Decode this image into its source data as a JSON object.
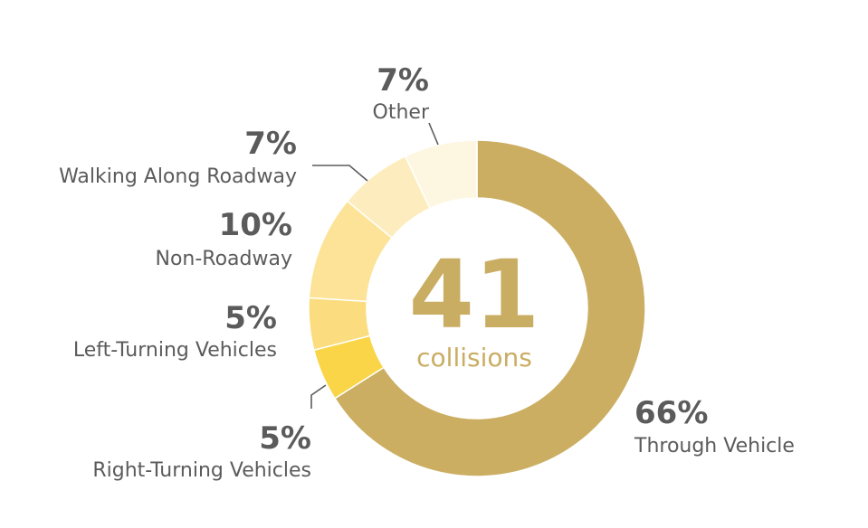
{
  "chart_data": {
    "type": "pie",
    "center": {
      "value": "41",
      "unit": "collisions"
    },
    "slices": [
      {
        "label": "Through Vehicle",
        "pct_label": "66%",
        "value": 66,
        "color": "#cbae62"
      },
      {
        "label": "Right-Turning Vehicles",
        "pct_label": "5%",
        "value": 5,
        "color": "#f9d547"
      },
      {
        "label": "Left-Turning Vehicles",
        "pct_label": "5%",
        "value": 5,
        "color": "#fbdd80"
      },
      {
        "label": "Non-Roadway",
        "pct_label": "10%",
        "value": 10,
        "color": "#fce397"
      },
      {
        "label": "Walking Along Roadway",
        "pct_label": "7%",
        "value": 7,
        "color": "#fdedbe"
      },
      {
        "label": "Other",
        "pct_label": "7%",
        "value": 7,
        "color": "#fdf6e1"
      }
    ]
  }
}
